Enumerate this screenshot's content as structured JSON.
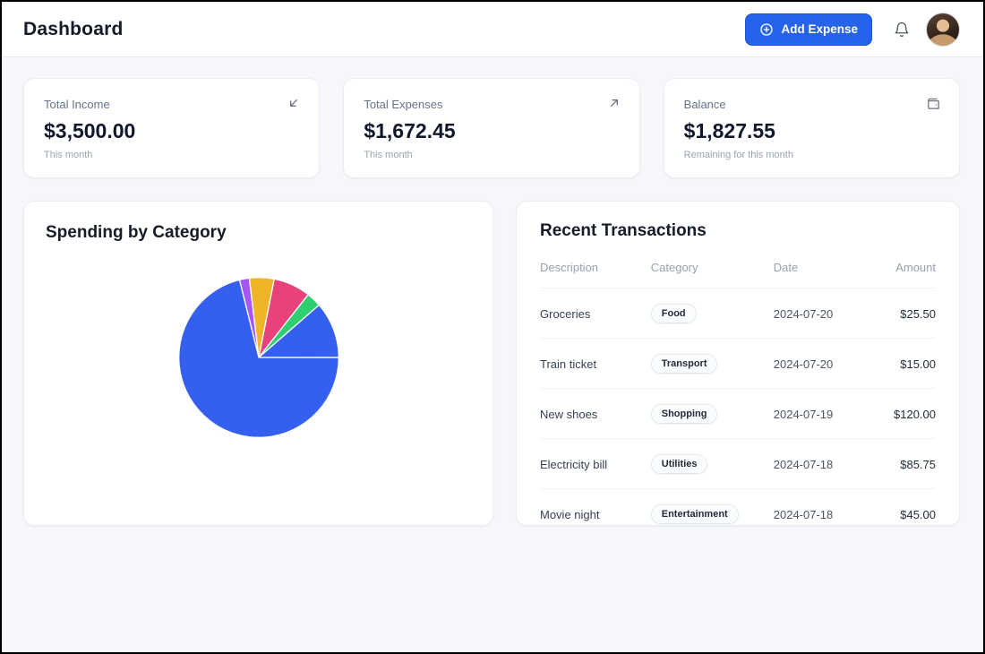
{
  "header": {
    "title": "Dashboard",
    "add_expense_label": "Add Expense"
  },
  "stats": [
    {
      "label": "Total Income",
      "value": "$3,500.00",
      "sub": "This month",
      "icon": "arrow-down-left"
    },
    {
      "label": "Total Expenses",
      "value": "$1,672.45",
      "sub": "This month",
      "icon": "arrow-up-right"
    },
    {
      "label": "Balance",
      "value": "$1,827.55",
      "sub": "Remaining for this month",
      "icon": "wallet"
    }
  ],
  "spending": {
    "title": "Spending by Category"
  },
  "chart_data": {
    "type": "pie",
    "title": "Spending by Category",
    "legend": "none",
    "start_angle_deg": -14,
    "slices": [
      {
        "label": "slice-purple",
        "percent": 2,
        "color": "#a855f7"
      },
      {
        "label": "slice-yellow",
        "percent": 5,
        "color": "#f0b429"
      },
      {
        "label": "slice-pink",
        "percent": 7.5,
        "color": "#e8417c"
      },
      {
        "label": "slice-green",
        "percent": 3,
        "color": "#2fcf6f"
      },
      {
        "label": "slice-blue-small",
        "percent": 11.4,
        "color": "#3560ef"
      },
      {
        "label": "slice-blue-large",
        "percent": 71.1,
        "color": "#3560ef"
      }
    ]
  },
  "transactions": {
    "title": "Recent Transactions",
    "columns": [
      "Description",
      "Category",
      "Date",
      "Amount"
    ],
    "rows": [
      {
        "description": "Groceries",
        "category": "Food",
        "date": "2024-07-20",
        "amount": "$25.50"
      },
      {
        "description": "Train ticket",
        "category": "Transport",
        "date": "2024-07-20",
        "amount": "$15.00"
      },
      {
        "description": "New shoes",
        "category": "Shopping",
        "date": "2024-07-19",
        "amount": "$120.00"
      },
      {
        "description": "Electricity bill",
        "category": "Utilities",
        "date": "2024-07-18",
        "amount": "$85.75"
      },
      {
        "description": "Movie night",
        "category": "Entertainment",
        "date": "2024-07-18",
        "amount": "$45.00"
      }
    ]
  }
}
